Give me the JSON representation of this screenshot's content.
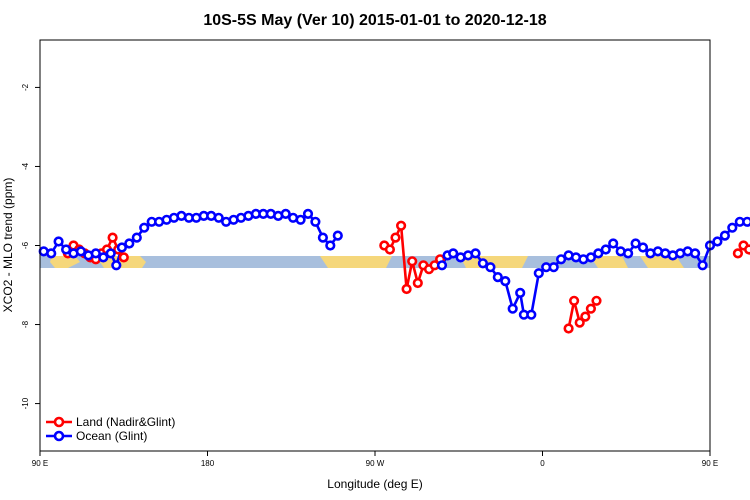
{
  "chart_data": {
    "type": "line",
    "title": "10S-5S May (Ver 10)   2015-01-01 to 2020-12-18",
    "xlabel": "Longitude (deg E)",
    "ylabel": "XCO2 - MLO trend (ppm)",
    "xlim": [
      90,
      450
    ],
    "ylim": [
      -11.2,
      -0.8
    ],
    "x_ticks": [
      {
        "value": 90,
        "label": "90 E"
      },
      {
        "value": 180,
        "label": "180"
      },
      {
        "value": 270,
        "label": "90 W"
      },
      {
        "value": 360,
        "label": "0"
      },
      {
        "value": 450,
        "label": "90 E"
      },
      {
        "value": 540,
        "label": "180"
      }
    ],
    "y_ticks": [
      {
        "value": -10,
        "label": "-10"
      },
      {
        "value": -8,
        "label": "-8"
      },
      {
        "value": -6,
        "label": "-6"
      },
      {
        "value": -4,
        "label": "-4"
      },
      {
        "value": -2,
        "label": "-2"
      }
    ],
    "grid": false,
    "legend_position": "bottom-left",
    "series": [
      {
        "name": "Land (Nadir&Glint)",
        "color": "#ff0000",
        "segments": [
          [
            [
              105,
              -6.2
            ],
            [
              108,
              -6.0
            ],
            [
              111,
              -6.1
            ],
            [
              114,
              -6.2
            ],
            [
              117,
              -6.3
            ],
            [
              120,
              -6.35
            ],
            [
              123,
              -6.2
            ],
            [
              126,
              -6.1
            ],
            [
              129,
              -5.8
            ],
            [
              132,
              -6.1
            ],
            [
              135,
              -6.3
            ]
          ],
          [
            [
              275,
              -6.0
            ],
            [
              278,
              -6.1
            ],
            [
              281,
              -5.8
            ],
            [
              284,
              -5.5
            ],
            [
              287,
              -7.1
            ],
            [
              290,
              -6.4
            ],
            [
              293,
              -6.95
            ],
            [
              296,
              -6.5
            ],
            [
              299,
              -6.6
            ],
            [
              302,
              -6.5
            ],
            [
              305,
              -6.35
            ]
          ],
          [
            [
              374,
              -8.1
            ],
            [
              377,
              -7.4
            ],
            [
              380,
              -7.95
            ],
            [
              383,
              -7.8
            ],
            [
              386,
              -7.6
            ],
            [
              389,
              -7.4
            ]
          ],
          [
            [
              465,
              -6.2
            ],
            [
              468,
              -6.0
            ],
            [
              471,
              -6.1
            ],
            [
              474,
              -6.2
            ],
            [
              477,
              -6.25
            ],
            [
              480,
              -6.35
            ],
            [
              483,
              -6.2
            ],
            [
              486,
              -6.1
            ],
            [
              489,
              -5.8
            ],
            [
              492,
              -6.1
            ],
            [
              495,
              -6.25
            ]
          ]
        ]
      },
      {
        "name": "Ocean (Glint)",
        "color": "#0000ff",
        "segments": [
          [
            [
              92,
              -6.15
            ],
            [
              96,
              -6.2
            ],
            [
              100,
              -5.9
            ],
            [
              104,
              -6.1
            ],
            [
              108,
              -6.2
            ],
            [
              112,
              -6.15
            ],
            [
              116,
              -6.25
            ],
            [
              120,
              -6.2
            ],
            [
              124,
              -6.3
            ],
            [
              128,
              -6.2
            ],
            [
              131,
              -6.5
            ],
            [
              134,
              -6.05
            ],
            [
              138,
              -5.95
            ],
            [
              142,
              -5.8
            ],
            [
              146,
              -5.55
            ],
            [
              150,
              -5.4
            ],
            [
              154,
              -5.4
            ],
            [
              158,
              -5.35
            ],
            [
              162,
              -5.3
            ],
            [
              166,
              -5.25
            ],
            [
              170,
              -5.3
            ],
            [
              174,
              -5.3
            ],
            [
              178,
              -5.25
            ],
            [
              182,
              -5.25
            ],
            [
              186,
              -5.3
            ],
            [
              190,
              -5.4
            ],
            [
              194,
              -5.35
            ],
            [
              198,
              -5.3
            ],
            [
              202,
              -5.25
            ],
            [
              206,
              -5.2
            ],
            [
              210,
              -5.2
            ],
            [
              214,
              -5.2
            ],
            [
              218,
              -5.25
            ],
            [
              222,
              -5.2
            ],
            [
              226,
              -5.3
            ],
            [
              230,
              -5.35
            ],
            [
              234,
              -5.2
            ],
            [
              238,
              -5.4
            ],
            [
              242,
              -5.8
            ],
            [
              246,
              -6.0
            ],
            [
              250,
              -5.75
            ]
          ],
          [
            [
              306,
              -6.5
            ],
            [
              309,
              -6.25
            ],
            [
              312,
              -6.2
            ],
            [
              316,
              -6.3
            ],
            [
              320,
              -6.25
            ],
            [
              324,
              -6.2
            ],
            [
              328,
              -6.45
            ],
            [
              332,
              -6.55
            ],
            [
              336,
              -6.8
            ],
            [
              340,
              -6.9
            ],
            [
              344,
              -7.6
            ],
            [
              348,
              -7.2
            ],
            [
              350,
              -7.75
            ],
            [
              354,
              -7.75
            ],
            [
              358,
              -6.7
            ],
            [
              362,
              -6.55
            ],
            [
              366,
              -6.55
            ],
            [
              370,
              -6.35
            ],
            [
              374,
              -6.25
            ],
            [
              378,
              -6.3
            ],
            [
              382,
              -6.35
            ],
            [
              386,
              -6.3
            ],
            [
              390,
              -6.2
            ],
            [
              394,
              -6.1
            ],
            [
              398,
              -5.95
            ],
            [
              402,
              -6.15
            ],
            [
              406,
              -6.2
            ],
            [
              410,
              -5.95
            ],
            [
              414,
              -6.05
            ],
            [
              418,
              -6.2
            ],
            [
              422,
              -6.15
            ],
            [
              426,
              -6.2
            ],
            [
              430,
              -6.25
            ],
            [
              434,
              -6.2
            ],
            [
              438,
              -6.15
            ],
            [
              442,
              -6.2
            ],
            [
              446,
              -6.5
            ],
            [
              450,
              -6.0
            ],
            [
              454,
              -5.9
            ],
            [
              458,
              -5.75
            ],
            [
              462,
              -5.55
            ],
            [
              466,
              -5.4
            ],
            [
              470,
              -5.4
            ],
            [
              474,
              -5.35
            ]
          ]
        ]
      }
    ]
  }
}
